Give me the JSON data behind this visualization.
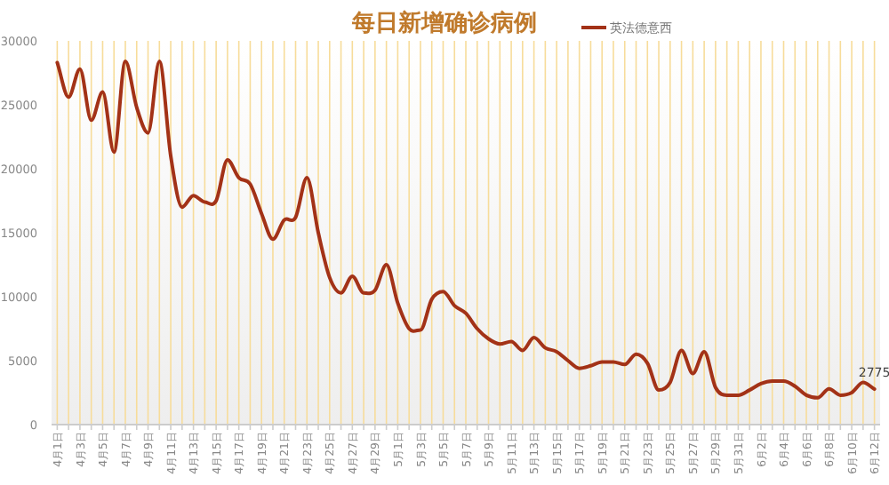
{
  "chart_data": {
    "type": "line",
    "title": "每日新增确诊病例",
    "categories": [
      "4月1日",
      null,
      "4月3日",
      null,
      "4月5日",
      null,
      "4月7日",
      null,
      "4月9日",
      null,
      "4月11日",
      null,
      "4月13日",
      null,
      "4月15日",
      null,
      "4月17日",
      null,
      "4月19日",
      null,
      "4月21日",
      null,
      "4月23日",
      null,
      "4月25日",
      null,
      "4月27日",
      null,
      "4月29日",
      null,
      "5月1日",
      null,
      "5月3日",
      null,
      "5月5日",
      null,
      "5月7日",
      null,
      "5月9日",
      null,
      "5月11日",
      null,
      "5月13日",
      null,
      "5月15日",
      null,
      "5月17日",
      null,
      "5月19日",
      null,
      "5月21日",
      null,
      "5月23日",
      null,
      "5月25日",
      null,
      "5月27日",
      null,
      "5月29日",
      null,
      "5月31日",
      null,
      "6月2日",
      null,
      "6月4日",
      null,
      "6月6日",
      null,
      "6月8日",
      null,
      "6月10日",
      null,
      "6月12日"
    ],
    "series": [
      {
        "name": "英法德意西",
        "color": "#a33217",
        "values": [
          28300,
          25600,
          27800,
          23800,
          26000,
          21300,
          28400,
          24800,
          22800,
          28400,
          21000,
          17000,
          17900,
          17400,
          17500,
          20700,
          19300,
          18800,
          16500,
          14500,
          16000,
          16200,
          19300,
          15000,
          11500,
          10300,
          11600,
          10300,
          10500,
          12500,
          9500,
          7500,
          7400,
          9800,
          10400,
          9300,
          8700,
          7500,
          6700,
          6300,
          6500,
          5800,
          6800,
          6000,
          5700,
          5000,
          4400,
          4600,
          4900,
          4900,
          4700,
          5500,
          4800,
          2700,
          3300,
          5800,
          4000,
          5700,
          2900,
          2300,
          2300,
          2700,
          3200,
          3400,
          3400,
          3000,
          2300,
          2100,
          2800,
          2300,
          2500,
          3300,
          2775
        ],
        "value_labels": [
          null,
          null,
          null,
          null,
          null,
          null,
          null,
          null,
          null,
          null,
          null,
          null,
          null,
          null,
          null,
          null,
          null,
          null,
          null,
          null,
          null,
          null,
          null,
          null,
          null,
          null,
          null,
          null,
          null,
          null,
          null,
          null,
          null,
          null,
          null,
          null,
          null,
          null,
          null,
          null,
          null,
          null,
          null,
          null,
          null,
          null,
          null,
          null,
          null,
          null,
          null,
          null,
          null,
          null,
          null,
          null,
          null,
          null,
          null,
          null,
          null,
          null,
          null,
          null,
          null,
          null,
          null,
          null,
          null,
          null,
          null,
          null,
          "2775"
        ]
      }
    ],
    "ylim": [
      0,
      30000
    ],
    "yticks": [
      0,
      5000,
      10000,
      15000,
      20000,
      25000,
      30000
    ],
    "grid": "x",
    "legend": "top right",
    "marker": "none",
    "line_style": "solid"
  }
}
